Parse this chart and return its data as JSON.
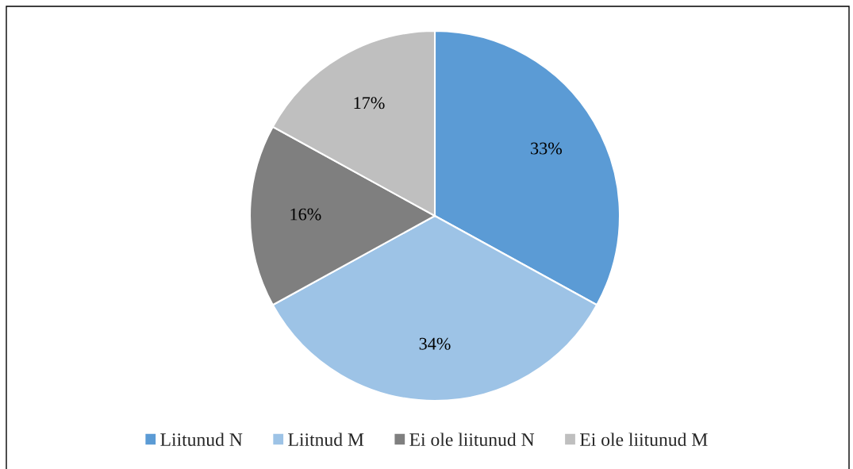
{
  "chart_data": {
    "type": "pie",
    "categories": [
      "Liitunud N",
      "Liitnud M",
      "Ei ole liitunud N",
      "Ei ole liitunud M"
    ],
    "values": [
      33,
      34,
      16,
      17
    ],
    "colors": [
      "#5b9bd5",
      "#9dc3e6",
      "#7f7f7f",
      "#bfbfbf"
    ],
    "value_labels": [
      "33%",
      "34%",
      "16%",
      "17%"
    ],
    "legend": "bottom"
  }
}
